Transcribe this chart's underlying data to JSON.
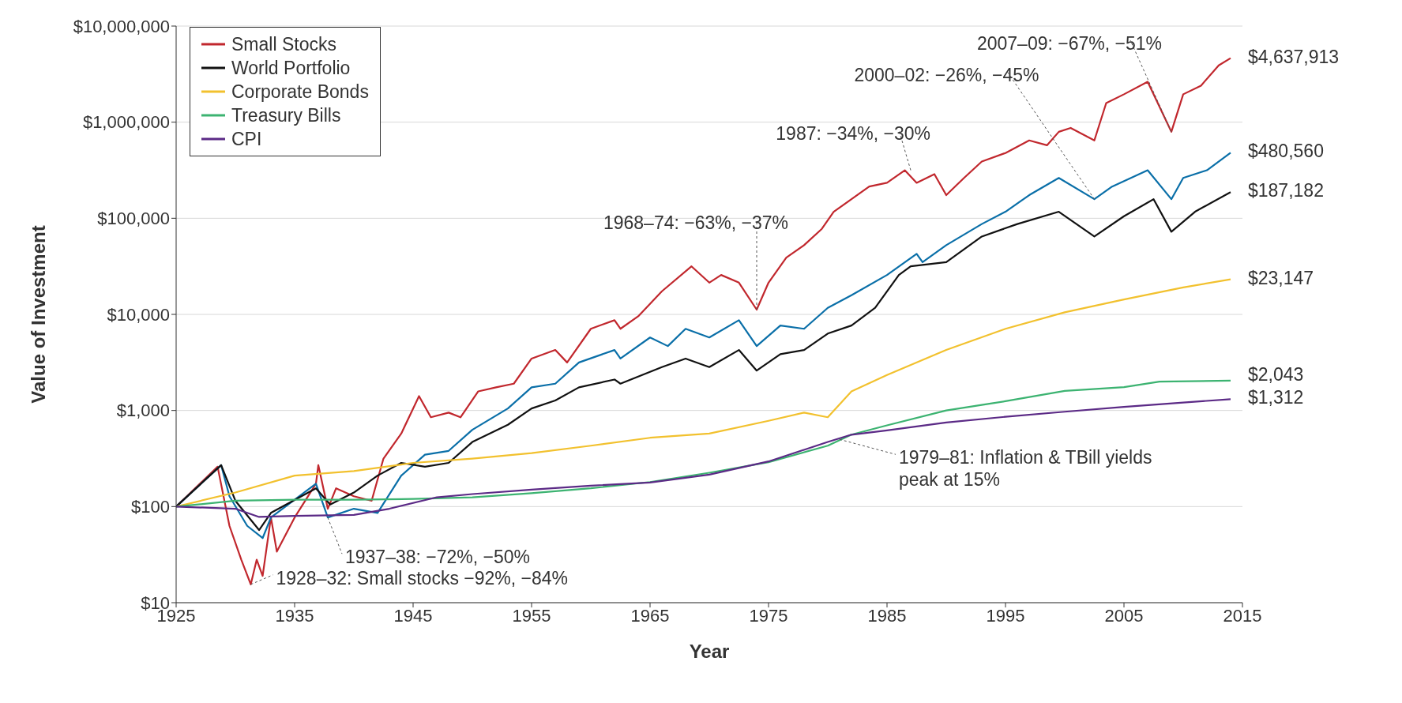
{
  "chart_data": {
    "type": "line",
    "xlabel": "Year",
    "ylabel": "Value of Investment",
    "log": "y",
    "grid": "y",
    "legend": "top left",
    "line_style": "solid",
    "marker": "none",
    "xlim": [
      1925,
      2015
    ],
    "xticks": [
      1925,
      1935,
      1945,
      1955,
      1965,
      1975,
      1985,
      1995,
      2005,
      2015
    ],
    "ylim": [
      10,
      10000000
    ],
    "yticks": [
      {
        "value": 10,
        "label": "$10"
      },
      {
        "value": 100,
        "label": "$100"
      },
      {
        "value": 1000,
        "label": "$1,000"
      },
      {
        "value": 10000,
        "label": "$10,000"
      },
      {
        "value": 100000,
        "label": "$100,000"
      },
      {
        "value": 1000000,
        "label": "$1,000,000"
      },
      {
        "value": 10000000,
        "label": "$10,000,000"
      }
    ],
    "series": [
      {
        "name": "Small Stocks",
        "color": "#c1272d",
        "x": [
          1925,
          1928.5,
          1929.5,
          1930.5,
          1931.3,
          1931.8,
          1932.3,
          1933,
          1933.5,
          1935,
          1936.8,
          1937,
          1937.8,
          1938.5,
          1940,
          1941.5,
          1942.5,
          1944,
          1945.5,
          1946.5,
          1948,
          1949,
          1950.5,
          1952,
          1953.5,
          1955,
          1957,
          1958,
          1960,
          1962,
          1962.5,
          1964,
          1966,
          1968.5,
          1970,
          1971,
          1972.5,
          1974,
          1975,
          1976.5,
          1978,
          1979.5,
          1980.5,
          1982,
          1983.5,
          1985,
          1986.5,
          1987.5,
          1989,
          1990,
          1991.5,
          1993,
          1995,
          1997,
          1998.5,
          1999.5,
          2000.5,
          2002.5,
          2003.5,
          2005,
          2007,
          2008.5,
          2009,
          2010,
          2011.5,
          2013,
          2014
        ],
        "values": [
          100,
          260,
          63,
          28,
          15.5,
          28,
          19,
          77,
          34,
          77,
          173,
          270,
          95,
          155,
          128,
          115,
          316,
          575,
          1410,
          850,
          950,
          850,
          1580,
          1740,
          1900,
          3470,
          4260,
          3160,
          7080,
          8700,
          7080,
          9550,
          17400,
          31600,
          21400,
          25700,
          21400,
          11200,
          21400,
          38900,
          52500,
          77600,
          117000,
          158000,
          214000,
          234000,
          316000,
          234000,
          288000,
          174000,
          263000,
          389000,
          478000,
          646000,
          575000,
          794000,
          871000,
          646000,
          1580000,
          1950000,
          2630000,
          1070000,
          794000,
          1950000,
          2400000,
          3900000,
          4637913
        ]
      },
      {
        "color": "#0a6fa8",
        "x": [
          1925,
          1928.8,
          1929.5,
          1931,
          1932.3,
          1933,
          1936.8,
          1937.8,
          1940,
          1942,
          1944,
          1946,
          1948,
          1950,
          1953,
          1955,
          1957,
          1959,
          1962,
          1962.5,
          1965,
          1966.5,
          1968,
          1970,
          1972.5,
          1974,
          1976,
          1978,
          1980,
          1982,
          1985,
          1987.5,
          1988,
          1990,
          1993,
          1995,
          1997,
          1999.5,
          2002.5,
          2004,
          2007,
          2009,
          2010,
          2012,
          2014
        ],
        "values": [
          100,
          270,
          128,
          63,
          47,
          77,
          173,
          77,
          95,
          86,
          210,
          347,
          380,
          630,
          1050,
          1740,
          1900,
          3160,
          4260,
          3470,
          5750,
          4680,
          7080,
          5750,
          8700,
          4680,
          7650,
          7080,
          11700,
          15800,
          25700,
          42700,
          35000,
          52500,
          87100,
          117000,
          174000,
          263000,
          158000,
          214000,
          316000,
          158000,
          263000,
          316000,
          480560
        ]
      },
      {
        "name": "World Portfolio",
        "color": "#111111",
        "x": [
          1925,
          1928.8,
          1930,
          1932,
          1933,
          1936.8,
          1938,
          1940,
          1942,
          1944,
          1946,
          1948,
          1950,
          1953,
          1955,
          1957,
          1959,
          1962,
          1962.5,
          1966,
          1968,
          1970,
          1972.5,
          1974,
          1976,
          1978,
          1980,
          1982,
          1984,
          1986,
          1987,
          1990,
          1993,
          1996,
          1999.5,
          2002.5,
          2005,
          2007.5,
          2009,
          2011,
          2014
        ],
        "values": [
          100,
          270,
          115,
          57,
          86,
          155,
          105,
          140,
          210,
          285,
          260,
          285,
          470,
          710,
          1050,
          1270,
          1740,
          2100,
          1900,
          2830,
          3470,
          2830,
          4260,
          2600,
          3850,
          4260,
          6310,
          7650,
          11700,
          25700,
          31600,
          35000,
          64600,
          87100,
          117000,
          64600,
          105000,
          158000,
          72400,
          117000,
          187182
        ]
      },
      {
        "name": "Corporate Bonds",
        "color": "#f2c12e",
        "x": [
          1925,
          1930,
          1935,
          1940,
          1945,
          1950,
          1955,
          1960,
          1965,
          1970,
          1975,
          1978,
          1980,
          1982,
          1985,
          1990,
          1995,
          2000,
          2005,
          2010,
          2014
        ],
        "values": [
          100,
          140,
          210,
          234,
          285,
          316,
          360,
          430,
          520,
          575,
          780,
          950,
          850,
          1580,
          2340,
          4260,
          7080,
          10500,
          14300,
          19100,
          23147
        ]
      },
      {
        "name": "Treasury Bills",
        "color": "#3cb371",
        "x": [
          1925,
          1930,
          1935,
          1940,
          1945,
          1950,
          1955,
          1960,
          1965,
          1970,
          1975,
          1980,
          1982,
          1985,
          1990,
          1995,
          2000,
          2005,
          2008,
          2014
        ],
        "values": [
          100,
          115,
          118,
          118,
          120,
          125,
          138,
          155,
          180,
          225,
          290,
          430,
          560,
          700,
          1000,
          1250,
          1600,
          1750,
          2000,
          2043
        ]
      },
      {
        "name": "CPI",
        "color": "#5b2a86",
        "x": [
          1925,
          1930,
          1932,
          1935,
          1940,
          1943,
          1947,
          1950,
          1955,
          1960,
          1965,
          1970,
          1975,
          1980,
          1982,
          1985,
          1990,
          1995,
          2000,
          2005,
          2010,
          2014
        ],
        "values": [
          100,
          95,
          78,
          80,
          82,
          95,
          125,
          135,
          150,
          165,
          178,
          215,
          295,
          470,
          560,
          620,
          750,
          860,
          970,
          1090,
          1210,
          1312
        ]
      }
    ],
    "annotations": [
      {
        "text": "$4,637,913",
        "x": 2014,
        "y": 4637913
      },
      {
        "text": "$480,560",
        "x": 2014,
        "y": 480560
      },
      {
        "text": "$187,182",
        "x": 2014,
        "y": 187182
      },
      {
        "text": "$23,147",
        "x": 2014,
        "y": 23147
      },
      {
        "text": "$2,043",
        "x": 2014,
        "y": 2043
      },
      {
        "text": "$1,312",
        "x": 2014,
        "y": 1312
      },
      {
        "text": "1928–32: Small stocks −92%, −84%",
        "x": 1931.3,
        "y": 15.5
      },
      {
        "text": "1937–38: −72%, −50%",
        "x": 1937.8,
        "y": 77
      },
      {
        "text": "1968–74: −63%, −37%",
        "x": 1974,
        "y": 11200
      },
      {
        "text": "1987: −34%, −30%",
        "x": 1987,
        "y": 316000
      },
      {
        "text": "2000–02: −26%, −45%",
        "x": 2002.5,
        "y": 158000
      },
      {
        "text": "2007–09: −67%, −51%",
        "x": 2009,
        "y": 794000
      },
      {
        "text": "1979–81: Inflation & TBill yields peak at 15%",
        "x": 1981,
        "y": 500
      }
    ]
  }
}
